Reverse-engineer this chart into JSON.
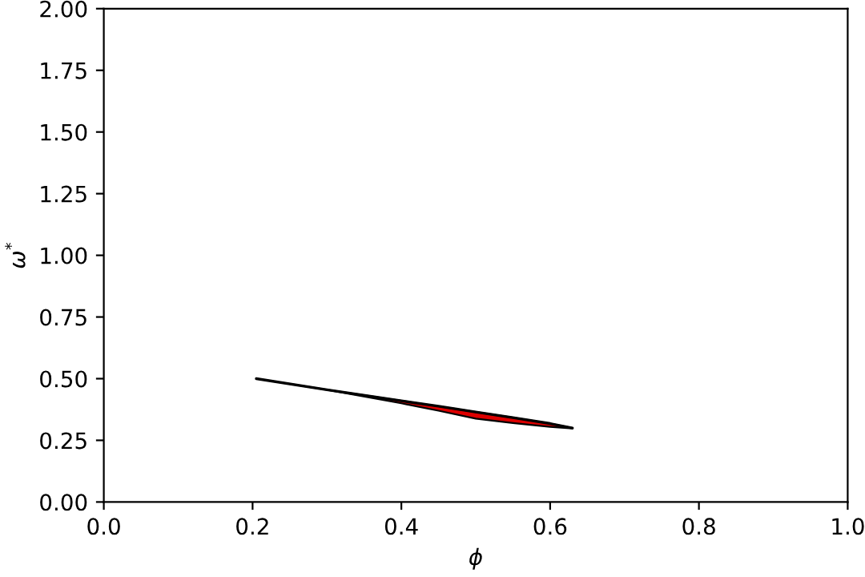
{
  "chart_data": {
    "type": "line",
    "xlabel": "ϕ",
    "ylabel": "ω$^{*}$",
    "x": [
      0.205,
      0.3,
      0.4,
      0.45,
      0.5,
      0.55,
      0.6,
      0.63
    ],
    "series": [
      {
        "color": "#000000",
        "values": [
          0.5,
          0.455,
          0.41,
          0.388,
          0.365,
          0.342,
          0.318,
          0.3
        ],
        "lower": [
          0.5,
          0.455,
          0.4,
          0.37,
          0.338,
          0.32,
          0.305,
          0.298
        ],
        "upper": [
          0.5,
          0.455,
          0.41,
          0.388,
          0.365,
          0.342,
          0.318,
          0.3
        ]
      }
    ],
    "xlim": [
      0,
      1
    ],
    "xticks": [
      {
        "value": 0,
        "label": "0.0"
      },
      {
        "value": 0.2,
        "label": "0.2"
      },
      {
        "value": 0.4,
        "label": "0.4"
      },
      {
        "value": 0.6,
        "label": "0.6"
      },
      {
        "value": 0.8,
        "label": "0.8"
      },
      {
        "value": 1,
        "label": "1.0"
      }
    ],
    "ylim": [
      0,
      2
    ],
    "yticks": [
      {
        "value": 0,
        "label": "0.00"
      },
      {
        "value": 0.25,
        "label": "0.25"
      },
      {
        "value": 0.5,
        "label": "0.50"
      },
      {
        "value": 0.75,
        "label": "0.75"
      },
      {
        "value": 1,
        "label": "1.00"
      },
      {
        "value": 1.25,
        "label": "1.25"
      },
      {
        "value": 1.5,
        "label": "1.50"
      },
      {
        "value": 1.75,
        "label": "1.75"
      },
      {
        "value": 2,
        "label": "2.00"
      }
    ],
    "grid": false,
    "legend": false
  }
}
